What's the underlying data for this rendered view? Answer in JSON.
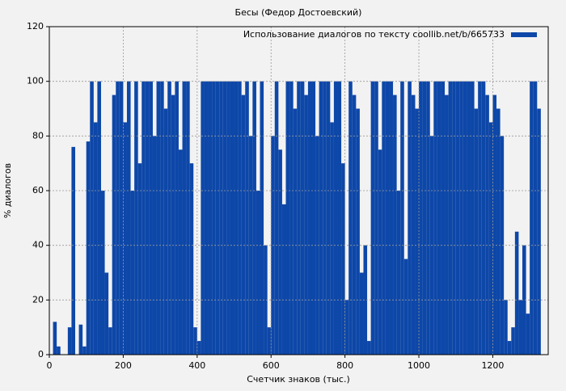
{
  "chart_data": {
    "type": "bar",
    "title": "Бесы (Федор Достоевский)",
    "xlabel": "Счетчик знаков (тыс.)",
    "ylabel": "% диалогов",
    "x": [
      0,
      10,
      20,
      30,
      40,
      50,
      60,
      70,
      80,
      90,
      100,
      110,
      120,
      130,
      140,
      150,
      160,
      170,
      180,
      190,
      200,
      210,
      220,
      230,
      240,
      250,
      260,
      270,
      280,
      290,
      300,
      310,
      320,
      330,
      340,
      350,
      360,
      370,
      380,
      390,
      400,
      410,
      420,
      430,
      440,
      450,
      460,
      470,
      480,
      490,
      500,
      510,
      520,
      530,
      540,
      550,
      560,
      570,
      580,
      590,
      600,
      610,
      620,
      630,
      640,
      650,
      660,
      670,
      680,
      690,
      700,
      710,
      720,
      730,
      740,
      750,
      760,
      770,
      780,
      790,
      800,
      810,
      820,
      830,
      840,
      850,
      860,
      870,
      880,
      890,
      900,
      910,
      920,
      930,
      940,
      950,
      960,
      970,
      980,
      990,
      1000,
      1010,
      1020,
      1030,
      1040,
      1050,
      1060,
      1070,
      1080,
      1090,
      1100,
      1110,
      1120,
      1130,
      1140,
      1150,
      1160,
      1170,
      1180,
      1190,
      1200,
      1210,
      1220,
      1230,
      1240,
      1250,
      1260,
      1270,
      1280,
      1290,
      1300,
      1310,
      1320
    ],
    "series": [
      {
        "name": "Использование диалогов по тексту coollib.net/b/665733",
        "color": "#0d47a8",
        "values": [
          0,
          12,
          3,
          0,
          0,
          10,
          76,
          0,
          11,
          3,
          78,
          100,
          85,
          100,
          60,
          30,
          10,
          95,
          100,
          100,
          85,
          100,
          60,
          100,
          70,
          100,
          100,
          100,
          80,
          100,
          100,
          90,
          100,
          95,
          100,
          75,
          100,
          100,
          70,
          10,
          5,
          100,
          100,
          100,
          100,
          100,
          100,
          100,
          100,
          100,
          100,
          100,
          95,
          100,
          80,
          100,
          60,
          100,
          40,
          10,
          80,
          100,
          75,
          55,
          100,
          100,
          90,
          100,
          100,
          95,
          100,
          100,
          80,
          100,
          100,
          100,
          85,
          100,
          100,
          70,
          20,
          100,
          95,
          90,
          30,
          40,
          5,
          100,
          100,
          75,
          100,
          100,
          100,
          95,
          60,
          100,
          35,
          100,
          95,
          90,
          100,
          100,
          100,
          80,
          100,
          100,
          100,
          95,
          100,
          100,
          100,
          100,
          100,
          100,
          100,
          90,
          100,
          100,
          95,
          85,
          95,
          90,
          80,
          20,
          5,
          10,
          45,
          20,
          40,
          15,
          100,
          100,
          90
        ]
      }
    ],
    "xlim": [
      0,
      1350
    ],
    "xticks": [
      0,
      200,
      400,
      600,
      800,
      1000,
      1200
    ],
    "ylim": [
      0,
      120
    ],
    "yticks": [
      0,
      20,
      40,
      60,
      80,
      100,
      120
    ],
    "grid": true,
    "legend": "upper right"
  }
}
